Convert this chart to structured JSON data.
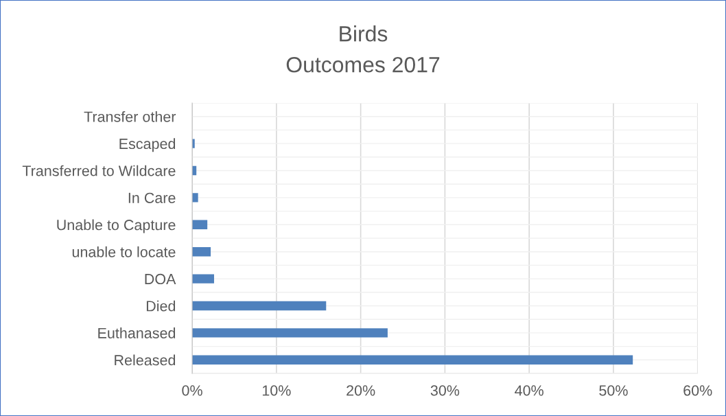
{
  "chart_data": {
    "type": "bar",
    "orientation": "horizontal",
    "title": "Birds",
    "subtitle": "Outcomes 2017",
    "categories": [
      "Transfer other",
      "Escaped",
      "Transferred to Wildcare",
      "In Care",
      "Unable to Capture",
      "unable to locate",
      "DOA",
      "Died",
      "Euthanased",
      "Released"
    ],
    "values": [
      0,
      0.3,
      0.5,
      0.7,
      1.8,
      2.2,
      2.6,
      15.9,
      23.2,
      52.3
    ],
    "color": "#4f81bd",
    "xlim": [
      0,
      60
    ],
    "xticks": [
      {
        "value": 0,
        "label": "0%"
      },
      {
        "value": 10,
        "label": "10%"
      },
      {
        "value": 20,
        "label": "20%"
      },
      {
        "value": 30,
        "label": "30%"
      },
      {
        "value": 40,
        "label": "40%"
      },
      {
        "value": 50,
        "label": "50%"
      },
      {
        "value": 60,
        "label": "60%"
      }
    ],
    "grid": true,
    "legend": false
  }
}
